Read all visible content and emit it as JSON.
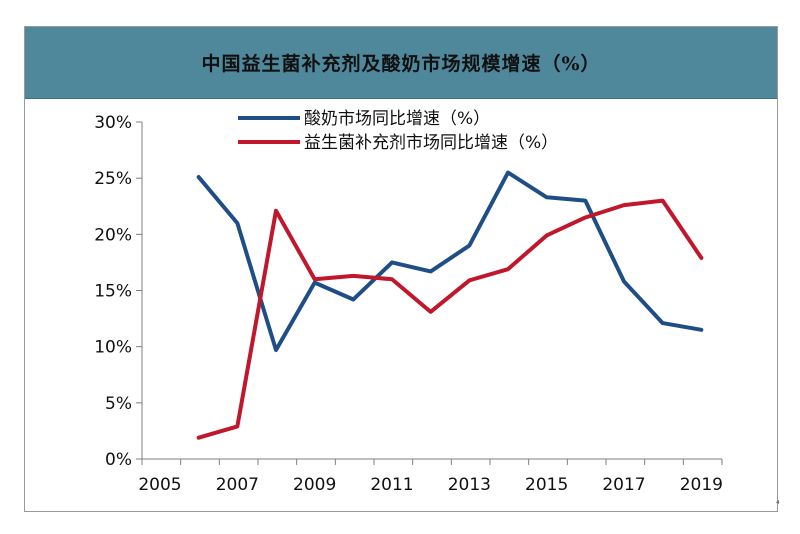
{
  "title": "中国益生菌补充剂及酸奶市场规模增速（%）",
  "corner_mark": "⁴",
  "colors": {
    "title_bar": "#4f879b",
    "yogurt": "#1f4e87",
    "probiotic": "#c0172d",
    "axis": "#7f7f7f"
  },
  "chart_data": {
    "type": "line",
    "title": "中国益生菌补充剂及酸奶市场规模增速（%）",
    "xlabel": "",
    "ylabel": "",
    "xlim": [
      2005,
      2020
    ],
    "ylim": [
      0,
      30
    ],
    "x_tick_values": [
      2005,
      2007,
      2009,
      2011,
      2013,
      2015,
      2017,
      2019
    ],
    "x_tick_labels": [
      "2005",
      "2007",
      "2009",
      "2011",
      "2013",
      "2015",
      "2017",
      "2019"
    ],
    "y_tick_values": [
      0,
      5,
      10,
      15,
      20,
      25,
      30
    ],
    "y_tick_labels": [
      "0%",
      "5%",
      "10%",
      "15%",
      "20%",
      "25%",
      "30%"
    ],
    "grid": false,
    "legend_position": "top",
    "x": [
      2006,
      2007,
      2008,
      2009,
      2010,
      2011,
      2012,
      2013,
      2014,
      2015,
      2016,
      2017,
      2018,
      2019
    ],
    "series": [
      {
        "name": "酸奶市场同比增速（%）",
        "color": "#1f4e87",
        "values": [
          25.1,
          21.0,
          9.7,
          15.7,
          14.2,
          17.5,
          16.7,
          19.0,
          25.5,
          23.3,
          23.0,
          15.8,
          12.1,
          11.5
        ]
      },
      {
        "name": "益生菌补充剂市场同比增速（%）",
        "color": "#c0172d",
        "values": [
          1.9,
          2.9,
          22.1,
          16.0,
          16.3,
          16.0,
          13.1,
          15.9,
          16.9,
          19.9,
          21.5,
          22.6,
          23.0,
          17.9
        ]
      }
    ]
  }
}
